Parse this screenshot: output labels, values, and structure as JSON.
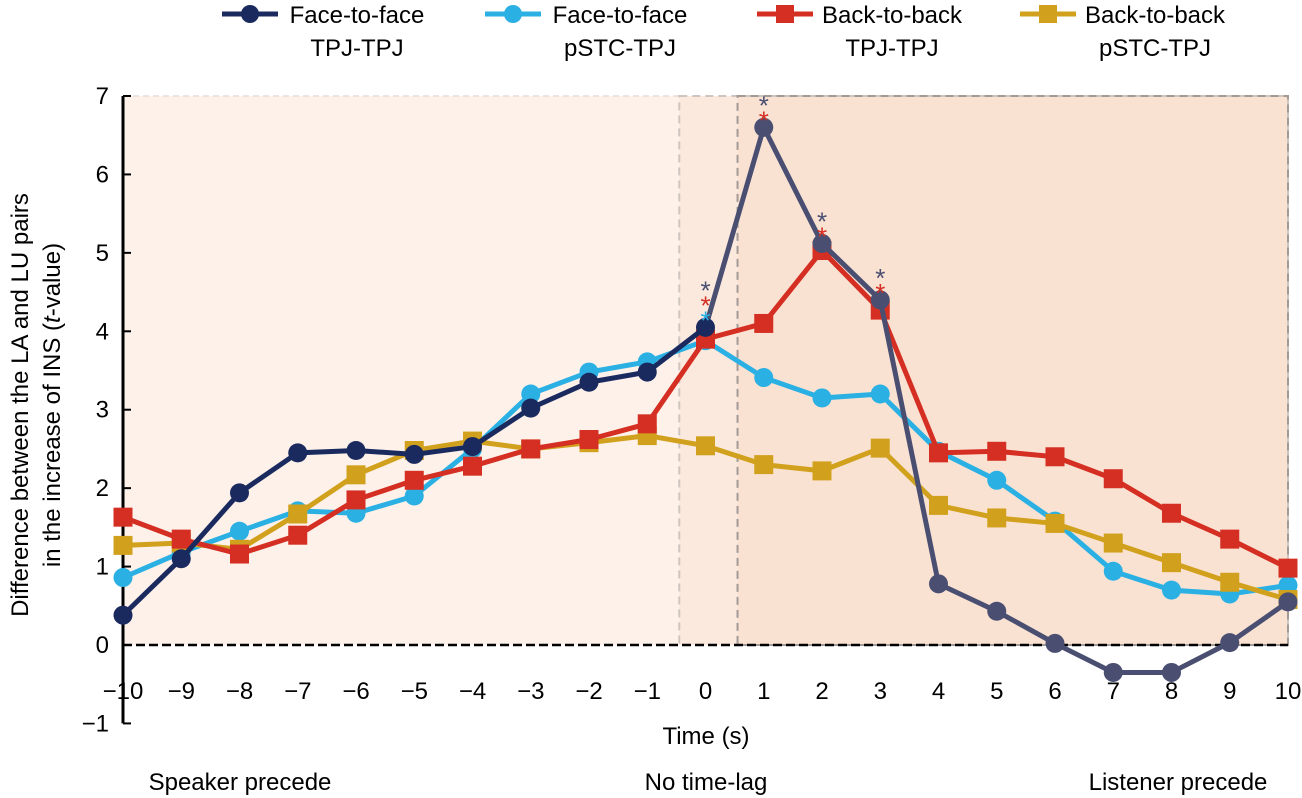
{
  "chart_data": {
    "type": "line",
    "title": "",
    "xlabel": "Time (s)",
    "ylabel_lines": [
      "Difference between the LA and LU pairs",
      "in the increase of INS (",
      "t",
      "-value)"
    ],
    "x": [
      -10,
      -9,
      -8,
      -7,
      -6,
      -5,
      -4,
      -3,
      -2,
      -1,
      0,
      1,
      2,
      3,
      4,
      5,
      6,
      7,
      8,
      9,
      10
    ],
    "xticks": [
      -10,
      -9,
      -8,
      -7,
      -6,
      -5,
      -4,
      -3,
      -2,
      -1,
      0,
      1,
      2,
      3,
      4,
      5,
      6,
      7,
      8,
      9,
      10
    ],
    "xtick_labels": [
      "−10",
      "−9",
      "−8",
      "−7",
      "−6",
      "−5",
      "−4",
      "−3",
      "−2",
      "−1",
      "0",
      "1",
      "2",
      "3",
      "4",
      "5",
      "6",
      "7",
      "8",
      "9",
      "10"
    ],
    "yticks": [
      -1,
      0,
      1,
      2,
      3,
      4,
      5,
      6,
      7
    ],
    "ytick_labels": [
      "−1",
      "0",
      "1",
      "2",
      "3",
      "4",
      "5",
      "6",
      "7"
    ],
    "xlim": [
      -10,
      10
    ],
    "ylim": [
      -1,
      7
    ],
    "legend_position": "top",
    "series": [
      {
        "name": "Face-to-face TPJ-TPJ",
        "legend_line1": "Face-to-face",
        "legend_line2": "TPJ-TPJ",
        "marker": "circle",
        "color": "#1b2a5e",
        "color_after_peak": "#4a4f72",
        "values": [
          0.38,
          1.1,
          1.94,
          2.45,
          2.48,
          2.43,
          2.53,
          3.02,
          3.35,
          3.48,
          4.05,
          6.6,
          5.12,
          4.4,
          0.78,
          0.43,
          0.02,
          -0.35,
          -0.35,
          0.03,
          0.55
        ]
      },
      {
        "name": "Face-to-face pSTC-TPJ",
        "legend_line1": "Face-to-face",
        "legend_line2": "pSTC-TPJ",
        "marker": "circle",
        "color": "#2ab0e3",
        "values": [
          0.86,
          1.18,
          1.45,
          1.71,
          1.68,
          1.9,
          2.5,
          3.2,
          3.48,
          3.61,
          3.88,
          3.41,
          3.15,
          3.2,
          2.47,
          2.1,
          1.58,
          0.94,
          0.7,
          0.65,
          0.76
        ]
      },
      {
        "name": "Back-to-back TPJ-TPJ",
        "legend_line1": "Back-to-back",
        "legend_line2": "TPJ-TPJ",
        "marker": "square",
        "color": "#d42f22",
        "values": [
          1.63,
          1.35,
          1.16,
          1.4,
          1.85,
          2.1,
          2.28,
          2.5,
          2.62,
          2.82,
          3.9,
          4.1,
          5.03,
          4.27,
          2.45,
          2.47,
          2.4,
          2.12,
          1.68,
          1.35,
          0.98
        ]
      },
      {
        "name": "Back-to-back pSTC-TPJ",
        "legend_line1": "Back-to-back",
        "legend_line2": "pSTC-TPJ",
        "marker": "square",
        "color": "#d1a11d",
        "values": [
          1.27,
          1.3,
          1.22,
          1.67,
          2.17,
          2.48,
          2.6,
          2.5,
          2.58,
          2.67,
          2.54,
          2.3,
          2.22,
          2.51,
          1.78,
          1.62,
          1.55,
          1.3,
          1.05,
          0.8,
          0.58
        ]
      }
    ],
    "significance_markers": [
      {
        "x": 0,
        "stars": [
          {
            "text": "*",
            "color": "#4a4f72"
          },
          {
            "text": "*",
            "color": "#d42f22"
          },
          {
            "text": "*",
            "color": "#2ab0e3"
          }
        ]
      },
      {
        "x": 1,
        "stars": [
          {
            "text": "*",
            "color": "#4a4f72"
          },
          {
            "text": "*",
            "color": "#d42f22"
          }
        ]
      },
      {
        "x": 2,
        "stars": [
          {
            "text": "*",
            "color": "#4a4f72"
          },
          {
            "text": "*",
            "color": "#d42f22"
          }
        ]
      },
      {
        "x": 3,
        "stars": [
          {
            "text": "*",
            "color": "#4a4f72"
          },
          {
            "text": "*",
            "color": "#d42f22"
          }
        ]
      }
    ],
    "regions": [
      {
        "name": "speaker-precede-region",
        "x_from": -10,
        "x_to": 0.55,
        "color": "#fdf1ea"
      },
      {
        "name": "listener-precede-region",
        "x_from": 0.55,
        "x_to": 10,
        "color": "#fae2d3"
      },
      {
        "name": "no-lag-region",
        "x_from": -0.45,
        "x_to": 0.55,
        "color": "#fbe9de"
      }
    ],
    "dashed_boxes": [
      {
        "name": "no-lag-box",
        "x_from": -0.45,
        "x_to": 10,
        "y_from": 0,
        "y_to": 7,
        "color": "#cfc5c0"
      },
      {
        "name": "listener-box",
        "x_from": 0.55,
        "x_to": 10,
        "y_from": 0,
        "y_to": 7,
        "color": "#a39a96"
      }
    ],
    "zero_line": {
      "y": 0,
      "style": "dashed"
    },
    "bottom_labels": {
      "left": "Speaker precede",
      "center": "No time-lag",
      "right": "Listener precede"
    }
  }
}
